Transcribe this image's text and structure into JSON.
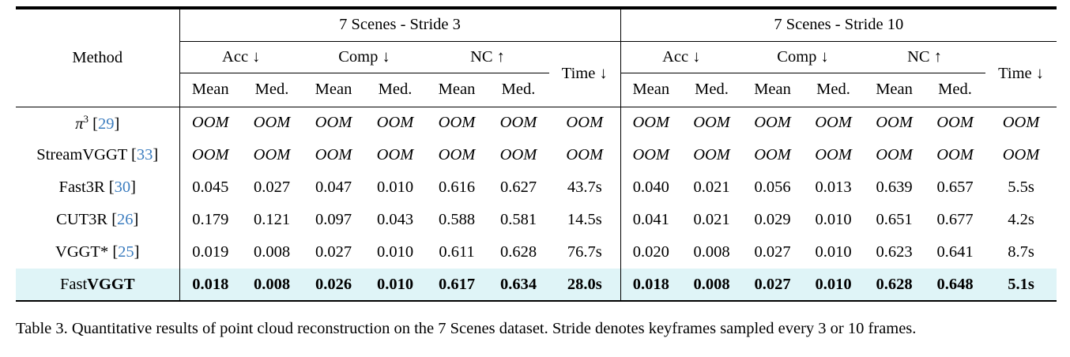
{
  "colors": {
    "citation_link": "#3c7dbf",
    "highlight_row": "#dff4f7",
    "rule": "#000000"
  },
  "misc": {
    "bracket_open": "[",
    "bracket_close": "]"
  },
  "table": {
    "header": {
      "method": "Method",
      "groups": [
        "7 Scenes - Stride 3",
        "7 Scenes - Stride 10"
      ],
      "metrics": [
        "Acc ↓",
        "Comp ↓",
        "NC ↑"
      ],
      "time": "Time ↓",
      "sub": [
        "Mean",
        "Med."
      ]
    },
    "rows": [
      {
        "method_parts": [
          {
            "text": "π",
            "italic": true
          },
          {
            "text": "3",
            "sup": true
          }
        ],
        "cite": "29",
        "italic": true,
        "bold": false,
        "highlight": false,
        "stride3": [
          "OOM",
          "OOM",
          "OOM",
          "OOM",
          "OOM",
          "OOM",
          "OOM"
        ],
        "stride10": [
          "OOM",
          "OOM",
          "OOM",
          "OOM",
          "OOM",
          "OOM",
          "OOM"
        ]
      },
      {
        "method_parts": [
          {
            "text": "StreamVGGT"
          }
        ],
        "cite": "33",
        "italic": true,
        "bold": false,
        "highlight": false,
        "stride3": [
          "OOM",
          "OOM",
          "OOM",
          "OOM",
          "OOM",
          "OOM",
          "OOM"
        ],
        "stride10": [
          "OOM",
          "OOM",
          "OOM",
          "OOM",
          "OOM",
          "OOM",
          "OOM"
        ]
      },
      {
        "method_parts": [
          {
            "text": "Fast3R"
          }
        ],
        "cite": "30",
        "italic": false,
        "bold": false,
        "highlight": false,
        "stride3": [
          "0.045",
          "0.027",
          "0.047",
          "0.010",
          "0.616",
          "0.627",
          "43.7s"
        ],
        "stride10": [
          "0.040",
          "0.021",
          "0.056",
          "0.013",
          "0.639",
          "0.657",
          "5.5s"
        ]
      },
      {
        "method_parts": [
          {
            "text": "CUT3R"
          }
        ],
        "cite": "26",
        "italic": false,
        "bold": false,
        "highlight": false,
        "stride3": [
          "0.179",
          "0.121",
          "0.097",
          "0.043",
          "0.588",
          "0.581",
          "14.5s"
        ],
        "stride10": [
          "0.041",
          "0.021",
          "0.029",
          "0.010",
          "0.651",
          "0.677",
          "4.2s"
        ]
      },
      {
        "method_parts": [
          {
            "text": "VGGT*"
          }
        ],
        "cite": "25",
        "italic": false,
        "bold": false,
        "highlight": false,
        "stride3": [
          "0.019",
          "0.008",
          "0.027",
          "0.010",
          "0.611",
          "0.628",
          "76.7s"
        ],
        "stride10": [
          "0.020",
          "0.008",
          "0.027",
          "0.010",
          "0.623",
          "0.641",
          "8.7s"
        ]
      },
      {
        "method_parts": [
          {
            "text": "Fast"
          },
          {
            "text": "VGGT",
            "bold": true
          }
        ],
        "cite": null,
        "italic": false,
        "bold": true,
        "highlight": true,
        "stride3": [
          "0.018",
          "0.008",
          "0.026",
          "0.010",
          "0.617",
          "0.634",
          "28.0s"
        ],
        "stride10": [
          "0.018",
          "0.008",
          "0.027",
          "0.010",
          "0.628",
          "0.648",
          "5.1s"
        ]
      }
    ]
  },
  "caption": "Table 3. Quantitative results of point cloud reconstruction on the 7 Scenes dataset. Stride denotes keyframes sampled every 3 or 10 frames."
}
